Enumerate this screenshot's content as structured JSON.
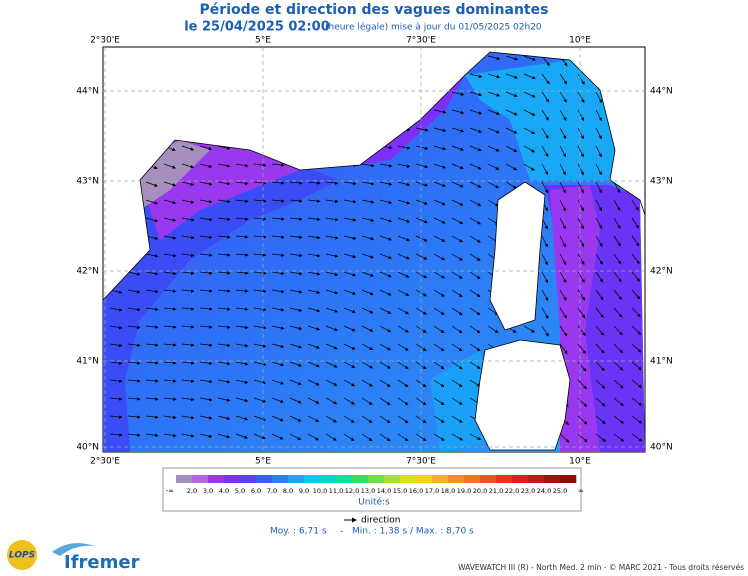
{
  "header": {
    "title": "Période et direction des vagues dominantes",
    "date": "le 25/04/2025 02:00",
    "update": "(heure légale) mise à jour du 01/05/2025 02h20"
  },
  "map": {
    "lon_labels": [
      "2°30'E",
      "5°E",
      "7°30'E",
      "10°E"
    ],
    "lat_labels": [
      "44°N",
      "43°N",
      "42°N",
      "41°N",
      "40°N"
    ]
  },
  "legend": {
    "colors": [
      "#a68fbd",
      "#b464e6",
      "#9a36f2",
      "#7c30f8",
      "#5a3ef8",
      "#3a5cf8",
      "#2a80f8",
      "#18a8f6",
      "#08c8ee",
      "#00d8c4",
      "#10e090",
      "#30e060",
      "#70e040",
      "#a8e030",
      "#d8e020",
      "#f4d020",
      "#f8b020",
      "#f89020",
      "#f87020",
      "#f05020",
      "#e83420",
      "#d82020",
      "#c41818",
      "#aa1010",
      "#900808"
    ],
    "low": "-∞",
    "high": "∞",
    "labels": [
      "2,0",
      "3,0",
      "4,0",
      "5,0",
      "6,0",
      "7,0",
      "8,0",
      "9,0",
      "10,0",
      "11,0",
      "12,0",
      "13,0",
      "14,0",
      "15,0",
      "16,0",
      "17,0",
      "18,0",
      "19,0",
      "20,0",
      "21,0",
      "22,0",
      "23,0",
      "24,0",
      "25,0"
    ],
    "unit": "Unité:s",
    "direction": "direction"
  },
  "stats": {
    "mean": "Moy. : 6,71 s",
    "sep": "-",
    "minmax": "Min. : 1,38 s / Max. : 8,70 s"
  },
  "footer": {
    "lops": "LOPS",
    "ifremer": "Ifremer",
    "credit": "WAVEWATCH III (R) - North Med. 2 min - © MARC 2021 - Tous droits réservés"
  }
}
